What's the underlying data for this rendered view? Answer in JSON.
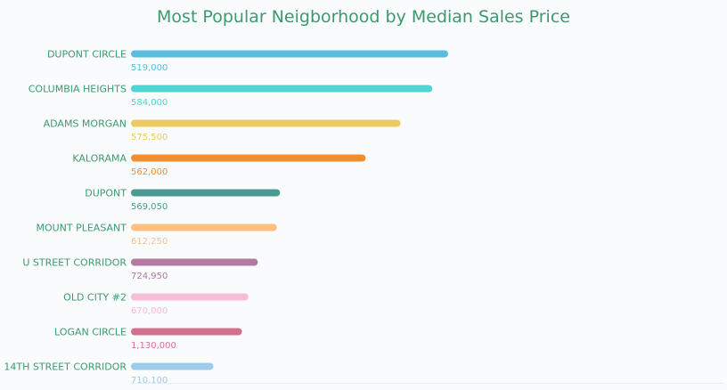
{
  "chart_data": {
    "type": "bar",
    "orientation": "horizontal",
    "title": "Most Popular Neigborhood by Median Sales Price",
    "categories": [
      "DUPONT CIRCLE",
      "COLUMBIA HEIGHTS",
      "ADAMS MORGAN",
      "KALORAMA",
      "DUPONT",
      "MOUNT PLEASANT",
      "U STREET CORRIDOR",
      "OLD CITY #2",
      "LOGAN CIRCLE",
      "14TH STREET CORRIDOR"
    ],
    "values": [
      100,
      95,
      85,
      74,
      47,
      46,
      40,
      37,
      35,
      26
    ],
    "value_labels": [
      "519,000",
      "584,000",
      "575,500",
      "562,000",
      "569,050",
      "612,250",
      "724,950",
      "670,000",
      "1,130,000",
      "710,100"
    ],
    "colors": [
      "#5bbcdd",
      "#4fd4d0",
      "#ecca63",
      "#ef8f2f",
      "#4a9a93",
      "#ffbf7f",
      "#b27aa1",
      "#f7bcd6",
      "#d4708f",
      "#9fcbe8"
    ],
    "label_color": "#3c9a6e",
    "xlim": [
      0,
      100
    ],
    "grid": false,
    "legend": "none"
  }
}
